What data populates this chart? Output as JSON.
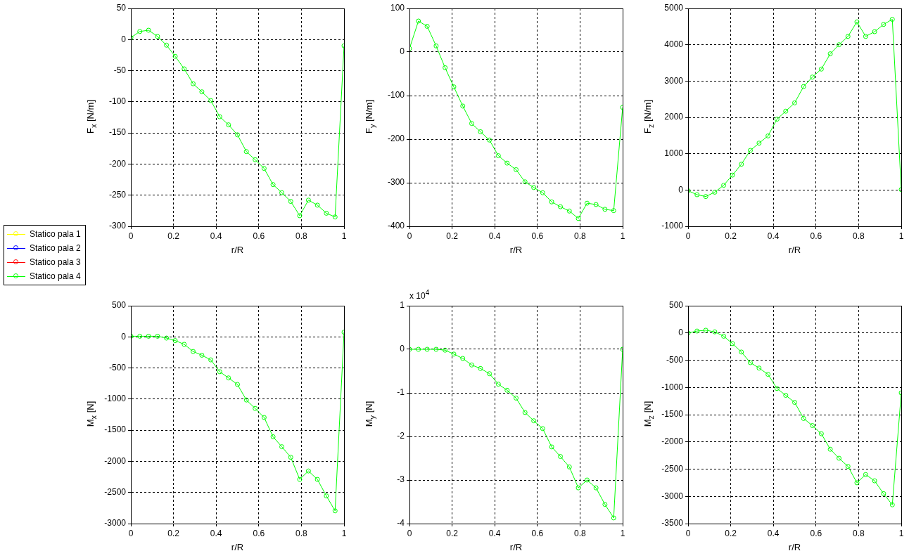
{
  "chart_data": [
    {
      "type": "line",
      "xlabel": "r/R",
      "ylabel": "F$_{x}$  [N/m]",
      "x": [
        0,
        0.042,
        0.083,
        0.125,
        0.167,
        0.208,
        0.25,
        0.292,
        0.333,
        0.375,
        0.417,
        0.458,
        0.5,
        0.542,
        0.583,
        0.625,
        0.667,
        0.708,
        0.75,
        0.792,
        0.833,
        0.875,
        0.917,
        0.958,
        1
      ],
      "xlim": [
        0,
        1
      ],
      "xticks": [
        0,
        0.2,
        0.4,
        0.6,
        0.8,
        1
      ],
      "ylim": [
        -300,
        50
      ],
      "yticks": [
        -300,
        -250,
        -200,
        -150,
        -100,
        -50,
        0,
        50
      ],
      "grid": true,
      "marker": "circle",
      "line_style": "solid",
      "legend": "bottom left",
      "series": [
        {
          "name": "Statico pala 1",
          "color": "#ffff00",
          "values": [
            null,
            null,
            null,
            null,
            null,
            null,
            null,
            null,
            null,
            null,
            null,
            null,
            null,
            null,
            null,
            null,
            null,
            null,
            null,
            null,
            null,
            null,
            null,
            null,
            null
          ]
        },
        {
          "name": "Statico pala 2",
          "color": "#0000ff",
          "values": [
            null,
            null,
            null,
            null,
            null,
            null,
            null,
            null,
            null,
            null,
            null,
            null,
            null,
            null,
            null,
            null,
            null,
            null,
            null,
            null,
            null,
            null,
            null,
            null,
            null
          ]
        },
        {
          "name": "Statico pala 3",
          "color": "#ff0000",
          "values": [
            null,
            null,
            null,
            null,
            null,
            null,
            null,
            null,
            null,
            null,
            null,
            null,
            null,
            null,
            null,
            null,
            null,
            null,
            null,
            null,
            null,
            null,
            null,
            null,
            null
          ]
        },
        {
          "name": "Statico pala 4",
          "color": "#00ff00",
          "values": [
            3,
            13,
            15,
            5,
            -9,
            -27,
            -47,
            -71,
            -84,
            -98,
            -124,
            -137,
            -153,
            -180,
            -193,
            -207,
            -233,
            -246,
            -260,
            -283,
            -258,
            -266,
            -279,
            -285,
            -10
          ]
        }
      ]
    },
    {
      "type": "line",
      "xlabel": "r/R",
      "ylabel": "F$_{y}$  [N/m]",
      "x": [
        0,
        0.042,
        0.083,
        0.125,
        0.167,
        0.208,
        0.25,
        0.292,
        0.333,
        0.375,
        0.417,
        0.458,
        0.5,
        0.542,
        0.583,
        0.625,
        0.667,
        0.708,
        0.75,
        0.792,
        0.833,
        0.875,
        0.917,
        0.958,
        1
      ],
      "xlim": [
        0,
        1
      ],
      "xticks": [
        0,
        0.2,
        0.4,
        0.6,
        0.8,
        1
      ],
      "ylim": [
        -400,
        100
      ],
      "yticks": [
        -400,
        -300,
        -200,
        -100,
        0,
        100
      ],
      "grid": true,
      "marker": "circle",
      "line_style": "solid",
      "series": [
        {
          "color": "#00ff00",
          "values": [
            8,
            71,
            59,
            14,
            -36,
            -80,
            -124,
            -164,
            -183,
            -202,
            -238,
            -255,
            -270,
            -298,
            -311,
            -323,
            -344,
            -355,
            -365,
            -382,
            -347,
            -350,
            -361,
            -364,
            -127
          ]
        }
      ]
    },
    {
      "type": "line",
      "xlabel": "r/R",
      "ylabel": "F$_{z}$  [N/m]",
      "x": [
        0,
        0.042,
        0.083,
        0.125,
        0.167,
        0.208,
        0.25,
        0.292,
        0.333,
        0.375,
        0.417,
        0.458,
        0.5,
        0.542,
        0.583,
        0.625,
        0.667,
        0.708,
        0.75,
        0.792,
        0.833,
        0.875,
        0.917,
        0.958,
        1
      ],
      "xlim": [
        0,
        1
      ],
      "xticks": [
        0,
        0.2,
        0.4,
        0.6,
        0.8,
        1
      ],
      "ylim": [
        -1000,
        5000
      ],
      "yticks": [
        -1000,
        0,
        1000,
        2000,
        3000,
        4000,
        5000
      ],
      "grid": true,
      "marker": "circle",
      "line_style": "solid",
      "series": [
        {
          "color": "#00ff00",
          "values": [
            -20,
            -130,
            -180,
            -60,
            130,
            410,
            710,
            1090,
            1290,
            1490,
            1950,
            2170,
            2400,
            2850,
            3110,
            3330,
            3750,
            4000,
            4230,
            4630,
            4230,
            4360,
            4560,
            4700,
            10
          ]
        }
      ]
    },
    {
      "type": "line",
      "xlabel": "r/R",
      "ylabel": "M$_{x}$  [N]",
      "x": [
        0,
        0.042,
        0.083,
        0.125,
        0.167,
        0.208,
        0.25,
        0.292,
        0.333,
        0.375,
        0.417,
        0.458,
        0.5,
        0.542,
        0.583,
        0.625,
        0.667,
        0.708,
        0.75,
        0.792,
        0.833,
        0.875,
        0.917,
        0.958,
        1
      ],
      "xlim": [
        0,
        1
      ],
      "xticks": [
        0,
        0.2,
        0.4,
        0.6,
        0.8,
        1
      ],
      "ylim": [
        -3000,
        500
      ],
      "yticks": [
        -3000,
        -2500,
        -2000,
        -1500,
        -1000,
        -500,
        0,
        500
      ],
      "grid": true,
      "marker": "circle",
      "line_style": "solid",
      "series": [
        {
          "color": "#00ff00",
          "values": [
            10,
            10,
            10,
            10,
            -20,
            -60,
            -120,
            -235,
            -295,
            -370,
            -560,
            -660,
            -765,
            -1015,
            -1150,
            -1295,
            -1605,
            -1765,
            -1935,
            -2290,
            -2155,
            -2290,
            -2555,
            -2795,
            75
          ]
        }
      ]
    },
    {
      "type": "line",
      "xlabel": "r/R",
      "ylabel": "M$_{y}$  [N]",
      "annotations": [
        "x 10$^{4}$"
      ],
      "x": [
        0,
        0.042,
        0.083,
        0.125,
        0.167,
        0.208,
        0.25,
        0.292,
        0.333,
        0.375,
        0.417,
        0.458,
        0.5,
        0.542,
        0.583,
        0.625,
        0.667,
        0.708,
        0.75,
        0.792,
        0.833,
        0.875,
        0.917,
        0.958,
        1
      ],
      "xlim": [
        0,
        1
      ],
      "xticks": [
        0,
        0.2,
        0.4,
        0.6,
        0.8,
        1
      ],
      "ylim": [
        -4,
        1
      ],
      "yticks": [
        -4,
        -3,
        -2,
        -1,
        0,
        1
      ],
      "grid": true,
      "marker": "circle",
      "line_style": "solid",
      "series": [
        {
          "color": "#00ff00",
          "values": [
            0,
            0,
            0,
            0,
            -0.02,
            -0.11,
            -0.21,
            -0.36,
            -0.44,
            -0.56,
            -0.8,
            -0.94,
            -1.12,
            -1.45,
            -1.64,
            -1.82,
            -2.24,
            -2.46,
            -2.7,
            -3.18,
            -3.0,
            -3.18,
            -3.56,
            -3.87,
            0
          ]
        }
      ]
    },
    {
      "type": "line",
      "xlabel": "r/R",
      "ylabel": "M$_{z}$  [N]",
      "x": [
        0,
        0.042,
        0.083,
        0.125,
        0.167,
        0.208,
        0.25,
        0.292,
        0.333,
        0.375,
        0.417,
        0.458,
        0.5,
        0.542,
        0.583,
        0.625,
        0.667,
        0.708,
        0.75,
        0.792,
        0.833,
        0.875,
        0.917,
        0.958,
        1
      ],
      "xlim": [
        0,
        1
      ],
      "xticks": [
        0,
        0.2,
        0.4,
        0.6,
        0.8,
        1
      ],
      "ylim": [
        -3500,
        500
      ],
      "yticks": [
        -3500,
        -3000,
        -2500,
        -2000,
        -1500,
        -1000,
        -500,
        0,
        500
      ],
      "grid": true,
      "marker": "circle",
      "line_style": "solid",
      "series": [
        {
          "color": "#00ff00",
          "values": [
            0,
            35,
            50,
            20,
            -60,
            -195,
            -350,
            -545,
            -645,
            -760,
            -1020,
            -1145,
            -1275,
            -1570,
            -1700,
            -1850,
            -2135,
            -2300,
            -2450,
            -2750,
            -2600,
            -2715,
            -2950,
            -3155,
            -1100
          ]
        }
      ]
    }
  ]
}
